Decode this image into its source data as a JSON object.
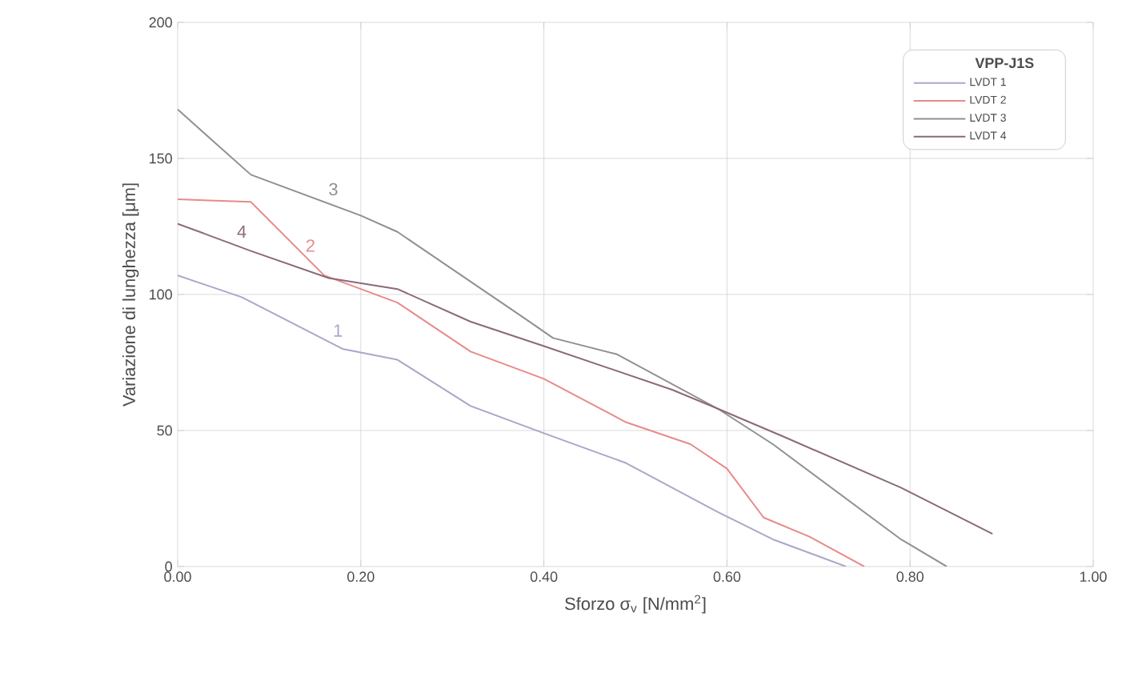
{
  "chart_data": {
    "type": "line",
    "xlabel": "Sforzo σ$_{v}$  [N/mm$^{2}$]",
    "ylabel": "Variazione di lunghezza  [μm]",
    "legend_title": "VPP-J1S",
    "xlim": [
      0,
      1
    ],
    "ylim": [
      0,
      200
    ],
    "xticks": [
      {
        "value": 0,
        "label": "0.00"
      },
      {
        "value": 0.2,
        "label": "0.20"
      },
      {
        "value": 0.4,
        "label": "0.40"
      },
      {
        "value": 0.6,
        "label": "0.60"
      },
      {
        "value": 0.8,
        "label": "0.80"
      },
      {
        "value": 1,
        "label": "1.00"
      }
    ],
    "yticks": [
      0,
      50,
      100,
      150,
      200
    ],
    "grid": true,
    "legend": "top right",
    "marker": "none",
    "line_style": "solid",
    "series": [
      {
        "name": "LVDT 1",
        "color": "#a8a8c8",
        "x": [
          0,
          0.07,
          0.18,
          0.24,
          0.32,
          0.4,
          0.49,
          0.59,
          0.65,
          0.73
        ],
        "values": [
          107,
          99,
          80,
          76,
          59,
          49,
          38,
          20,
          10,
          0
        ]
      },
      {
        "name": "LVDT 2",
        "color": "#e88a8a",
        "x": [
          0,
          0.08,
          0.16,
          0.24,
          0.32,
          0.4,
          0.49,
          0.56,
          0.6,
          0.64,
          0.69,
          0.75
        ],
        "values": [
          135,
          134,
          107,
          97,
          79,
          69,
          53,
          45,
          36,
          18,
          11,
          0
        ]
      },
      {
        "name": "LVDT 3",
        "color": "#909090",
        "x": [
          0,
          0.08,
          0.2,
          0.24,
          0.38,
          0.41,
          0.48,
          0.59,
          0.65,
          0.79,
          0.84
        ],
        "values": [
          168,
          144,
          129,
          123,
          91,
          84,
          78,
          58,
          45,
          10,
          0
        ]
      },
      {
        "name": "LVDT 4",
        "color": "#8a6a7a",
        "x": [
          0,
          0.08,
          0.165,
          0.24,
          0.32,
          0.4,
          0.54,
          0.59,
          0.66,
          0.79,
          0.89
        ],
        "values": [
          126,
          116,
          106,
          102,
          90,
          81,
          65,
          58,
          48,
          29,
          12
        ]
      }
    ],
    "annotations": [
      "1",
      "2",
      "3",
      "4"
    ]
  }
}
